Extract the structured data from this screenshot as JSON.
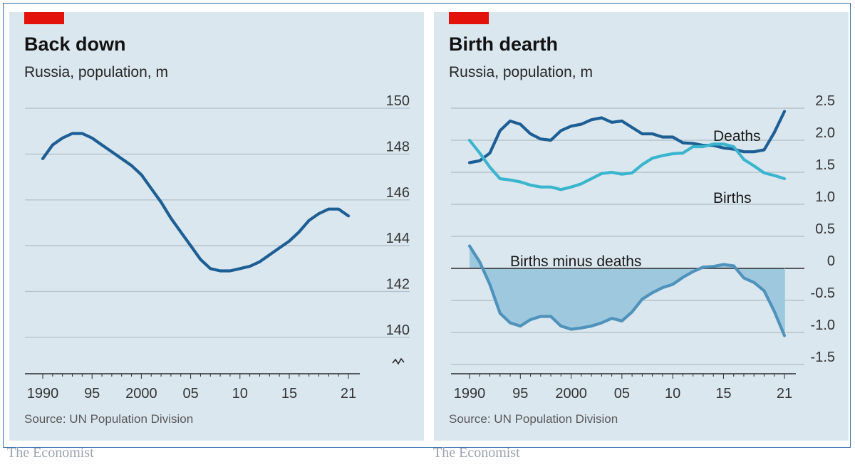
{
  "left": {
    "title": "Back down",
    "subtitle": "Russia, population, m",
    "source": "Source: UN Population Division",
    "brand": "The Economist"
  },
  "right": {
    "title": "Birth dearth",
    "subtitle": "Russia, population, m",
    "source": "Source: UN Population Division",
    "brand": "The Economist",
    "label_deaths": "Deaths",
    "label_births": "Births",
    "label_diff": "Births minus deaths"
  },
  "colors": {
    "dark_blue": "#1d5f95",
    "light_blue": "#3ab5cd",
    "area_fill": "#9ec8dd",
    "mid_blue": "#4f92bb",
    "red": "#e3120b"
  },
  "chart_data": [
    {
      "type": "line",
      "title": "Back down",
      "subtitle": "Russia, population, m",
      "y_axis_side": "right",
      "ylim": [
        139,
        150.5
      ],
      "y_ticks": [
        140,
        142,
        144,
        146,
        148,
        150
      ],
      "y_tick_labels": [
        "140",
        "142",
        "144",
        "146",
        "148",
        "150"
      ],
      "x_ticks": [
        1990,
        1995,
        2000,
        2005,
        2010,
        2015,
        2021
      ],
      "x_tick_labels": [
        "1990",
        "95",
        "2000",
        "05",
        "10",
        "15",
        "21"
      ],
      "grid": true,
      "axis_break": true,
      "series": [
        {
          "color": "#1d5f95",
          "x": [
            1990,
            1991,
            1992,
            1993,
            1994,
            1995,
            1996,
            1997,
            1998,
            1999,
            2000,
            2001,
            2002,
            2003,
            2004,
            2005,
            2006,
            2007,
            2008,
            2009,
            2010,
            2011,
            2012,
            2013,
            2014,
            2015,
            2016,
            2017,
            2018,
            2019,
            2020,
            2021
          ],
          "values": [
            147.8,
            148.4,
            148.7,
            148.9,
            148.9,
            148.7,
            148.4,
            148.1,
            147.8,
            147.5,
            147.1,
            146.5,
            145.9,
            145.2,
            144.6,
            144.0,
            143.4,
            143.0,
            142.9,
            142.9,
            143.0,
            143.1,
            143.3,
            143.6,
            143.9,
            144.2,
            144.6,
            145.1,
            145.4,
            145.6,
            145.6,
            145.3
          ]
        }
      ]
    },
    {
      "type": "line",
      "title": "Birth dearth",
      "subtitle": "Russia, population, m",
      "y_axis_side": "right",
      "ylim": [
        -1.5,
        2.5
      ],
      "y_ticks": [
        -1.5,
        -1.0,
        -0.5,
        0,
        0.5,
        1.0,
        1.5,
        2.0,
        2.5
      ],
      "y_tick_labels": [
        "-1.5",
        "-1.0",
        "-0.5",
        "0",
        "0.5",
        "1.0",
        "1.5",
        "2.0",
        "2.5"
      ],
      "x_ticks": [
        1990,
        1995,
        2000,
        2005,
        2010,
        2015,
        2021
      ],
      "x_tick_labels": [
        "1990",
        "95",
        "2000",
        "05",
        "10",
        "15",
        "21"
      ],
      "grid": true,
      "series": [
        {
          "name": "Deaths",
          "color": "#1d5f95",
          "x": [
            1990,
            1991,
            1992,
            1993,
            1994,
            1995,
            1996,
            1997,
            1998,
            1999,
            2000,
            2001,
            2002,
            2003,
            2004,
            2005,
            2006,
            2007,
            2008,
            2009,
            2010,
            2011,
            2012,
            2013,
            2014,
            2015,
            2016,
            2017,
            2018,
            2019,
            2020,
            2021
          ],
          "values": [
            1.65,
            1.68,
            1.8,
            2.15,
            2.3,
            2.25,
            2.1,
            2.02,
            2.0,
            2.15,
            2.22,
            2.25,
            2.32,
            2.35,
            2.28,
            2.3,
            2.2,
            2.1,
            2.1,
            2.05,
            2.05,
            1.96,
            1.95,
            1.92,
            1.92,
            1.88,
            1.86,
            1.82,
            1.82,
            1.85,
            2.12,
            2.45
          ]
        },
        {
          "name": "Births",
          "color": "#3ab5cd",
          "x": [
            1990,
            1991,
            1992,
            1993,
            1994,
            1995,
            1996,
            1997,
            1998,
            1999,
            2000,
            2001,
            2002,
            2003,
            2004,
            2005,
            2006,
            2007,
            2008,
            2009,
            2010,
            2011,
            2012,
            2013,
            2014,
            2015,
            2016,
            2017,
            2018,
            2019,
            2020,
            2021
          ],
          "values": [
            2.0,
            1.8,
            1.58,
            1.4,
            1.38,
            1.35,
            1.3,
            1.27,
            1.27,
            1.23,
            1.27,
            1.32,
            1.4,
            1.48,
            1.5,
            1.47,
            1.49,
            1.62,
            1.72,
            1.76,
            1.79,
            1.8,
            1.9,
            1.9,
            1.94,
            1.94,
            1.9,
            1.7,
            1.6,
            1.49,
            1.45,
            1.4
          ]
        },
        {
          "name": "Births minus deaths",
          "type": "area",
          "color": "#4f92bb",
          "fill": "#9ec8dd",
          "x": [
            1990,
            1991,
            1992,
            1993,
            1994,
            1995,
            1996,
            1997,
            1998,
            1999,
            2000,
            2001,
            2002,
            2003,
            2004,
            2005,
            2006,
            2007,
            2008,
            2009,
            2010,
            2011,
            2012,
            2013,
            2014,
            2015,
            2016,
            2017,
            2018,
            2019,
            2020,
            2021
          ],
          "values": [
            0.35,
            0.1,
            -0.25,
            -0.7,
            -0.85,
            -0.9,
            -0.8,
            -0.75,
            -0.75,
            -0.9,
            -0.95,
            -0.93,
            -0.9,
            -0.85,
            -0.78,
            -0.82,
            -0.68,
            -0.48,
            -0.38,
            -0.3,
            -0.25,
            -0.14,
            -0.05,
            0.02,
            0.03,
            0.06,
            0.04,
            -0.15,
            -0.22,
            -0.35,
            -0.67,
            -1.05
          ]
        }
      ]
    }
  ]
}
